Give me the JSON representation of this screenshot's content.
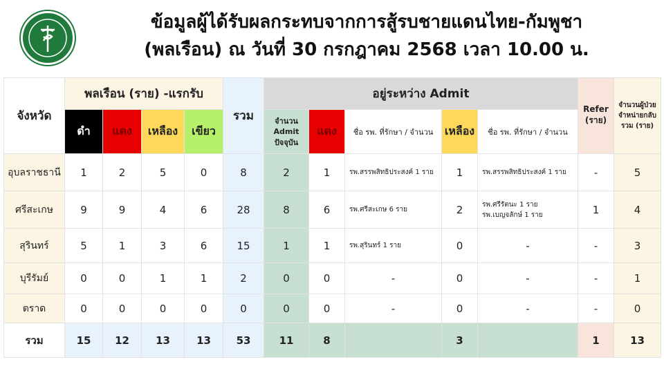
{
  "header": {
    "title_line1": "ข้อมูลผู้ได้รับผลกระทบจากการสู้รบชายแดนไทย-กัมพูชา",
    "title_line2": "(พลเรือน) ณ วันที่ 30 กรกฎาคม 2568 เวลา 10.00 น.",
    "logo_text": "กระทรวงสาธารณสุข MINISTRY OF PUBLIC HEALTH"
  },
  "columns": {
    "province": "จังหวัด",
    "civilian_group": "พลเรือน (ราย) -แรกรับ",
    "black": "ดำ",
    "red": "แดง",
    "yellow": "เหลือง",
    "green": "เขียว",
    "total": "รวม",
    "admit_group": "อยู่ระหว่าง Admit",
    "admit_count": "จำนวน Admit ปัจจุบัน",
    "admit_red": "แดง",
    "hosp_red": "ชื่อ รพ. ที่รักษา / จำนวน",
    "admit_yellow": "เหลือง",
    "hosp_yellow": "ชื่อ รพ. ที่รักษา / จำนวน",
    "refer": "Refer (ราย)",
    "discharged": "จำนวนผู้ป่วย จำหน่ายกลับ รวม (ราย)"
  },
  "colors": {
    "black": "#000000",
    "red": "#e60000",
    "yellow": "#fdd85a",
    "green": "#b6f06a"
  },
  "rows": [
    {
      "province": "อุบลราชธานี",
      "black": "1",
      "red": "2",
      "yellow": "5",
      "green": "0",
      "total": "8",
      "admit": "2",
      "admit_red": "1",
      "hosp_red": "รพ.สรรพสิทธิประสงค์ 1 ราย",
      "admit_yellow": "1",
      "hosp_yellow": "รพ.สรรพสิทธิประสงค์ 1 ราย",
      "refer": "-",
      "discharged": "5"
    },
    {
      "province": "ศรีสะเกษ",
      "black": "9",
      "red": "9",
      "yellow": "4",
      "green": "6",
      "total": "28",
      "admit": "8",
      "admit_red": "6",
      "hosp_red": "รพ.ศรีสะเกษ 6 ราย",
      "admit_yellow": "2",
      "hosp_yellow": "รพ.ศรีรัตนะ 1 ราย\nรพ.เบญจลักษ์ 1 ราย",
      "refer": "1",
      "discharged": "4"
    },
    {
      "province": "สุรินทร์",
      "black": "5",
      "red": "1",
      "yellow": "3",
      "green": "6",
      "total": "15",
      "admit": "1",
      "admit_red": "1",
      "hosp_red": "รพ.สุรินทร์ 1 ราย",
      "admit_yellow": "0",
      "hosp_yellow": "-",
      "refer": "-",
      "discharged": "3"
    },
    {
      "province": "บุรีรัมย์",
      "black": "0",
      "red": "0",
      "yellow": "1",
      "green": "1",
      "total": "2",
      "admit": "0",
      "admit_red": "0",
      "hosp_red": "-",
      "admit_yellow": "0",
      "hosp_yellow": "-",
      "refer": "-",
      "discharged": "1"
    },
    {
      "province": "ตราด",
      "black": "0",
      "red": "0",
      "yellow": "0",
      "green": "0",
      "total": "0",
      "admit": "0",
      "admit_red": "0",
      "hosp_red": "-",
      "admit_yellow": "0",
      "hosp_yellow": "-",
      "refer": "-",
      "discharged": "0"
    }
  ],
  "totals": {
    "label": "รวม",
    "black": "15",
    "red": "12",
    "yellow": "13",
    "green": "13",
    "total": "53",
    "admit": "11",
    "admit_red": "8",
    "admit_yellow": "3",
    "refer": "1",
    "discharged": "13"
  }
}
